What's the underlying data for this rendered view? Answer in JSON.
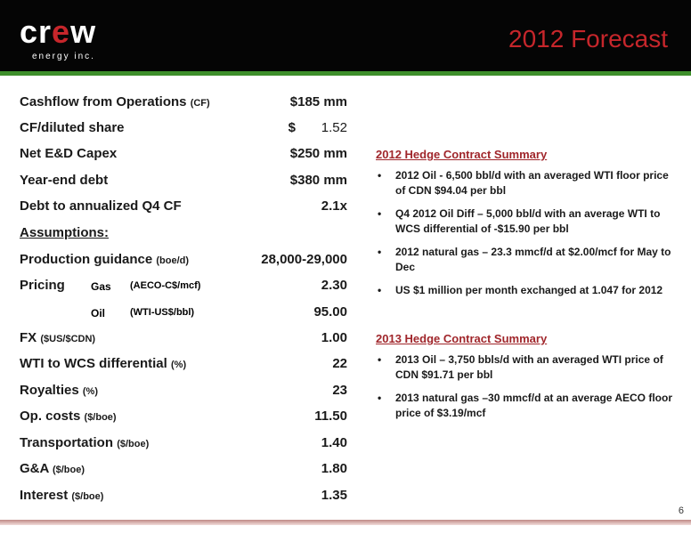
{
  "header": {
    "logo_main_pre": "cr",
    "logo_main_accent": "e",
    "logo_main_post": "w",
    "logo_sub": "energy inc.",
    "title": "2012 Forecast"
  },
  "metrics": [
    {
      "label": "Cashflow from Operations",
      "unit": "(CF)",
      "value": "$185 mm"
    },
    {
      "label": "CF/diluted share",
      "unit": "",
      "value_prefix": "$",
      "value": "1.52"
    },
    {
      "label": "Net E&D Capex",
      "unit": "",
      "value": "$250 mm"
    },
    {
      "label": "Year-end debt",
      "unit": "",
      "value": "$380 mm"
    },
    {
      "label": "Debt to annualized Q4 CF",
      "unit": "",
      "value": "2.1x"
    }
  ],
  "assumptions_heading": "Assumptions:",
  "assumptions": {
    "production": {
      "label": "Production guidance",
      "unit": "(boe/d)",
      "value": "28,000-29,000"
    },
    "pricing_gas": {
      "label": "Pricing",
      "sub": "Gas",
      "unit": "(AECO-C$/mcf)",
      "value": "2.30"
    },
    "pricing_oil": {
      "sub": "Oil",
      "unit": "(WTI-US$/bbl)",
      "value": "95.00"
    },
    "fx": {
      "label": "FX",
      "unit": "($US/$CDN)",
      "value": "1.00"
    },
    "wti_wcs": {
      "label": "WTI to WCS differential",
      "unit": "(%)",
      "value": "22"
    },
    "royalties": {
      "label": "Royalties",
      "unit": "(%)",
      "value": "23"
    },
    "op_costs": {
      "label": "Op. costs",
      "unit": "($/boe)",
      "value": "11.50"
    },
    "transportation": {
      "label": "Transportation",
      "unit": "($/boe)",
      "value": "1.40"
    },
    "ga": {
      "label": "G&A",
      "unit": "($/boe)",
      "value": "1.80"
    },
    "interest": {
      "label": "Interest",
      "unit": "($/boe)",
      "value": "1.35"
    }
  },
  "hedge_2012": {
    "title": "2012 Hedge Contract Summary",
    "items": [
      "2012 Oil - 6,500 bbl/d with an averaged WTI floor price of CDN $94.04 per bbl",
      "Q4 2012 Oil Diff – 5,000 bbl/d with an average WTI to WCS differential of -$15.90 per bbl",
      "2012 natural gas – 23.3 mmcf/d at $2.00/mcf for May to Dec",
      "US $1 million per month exchanged at 1.047 for 2012"
    ]
  },
  "hedge_2013": {
    "title": "2013 Hedge Contract Summary",
    "items": [
      "2013 Oil – 3,750 bbls/d with an averaged WTI price of CDN $91.71 per bbl",
      "2013 natural gas –30 mmcf/d at an average AECO floor price of $3.19/mcf"
    ]
  },
  "bullet_glyph": "•",
  "page_number": "6"
}
